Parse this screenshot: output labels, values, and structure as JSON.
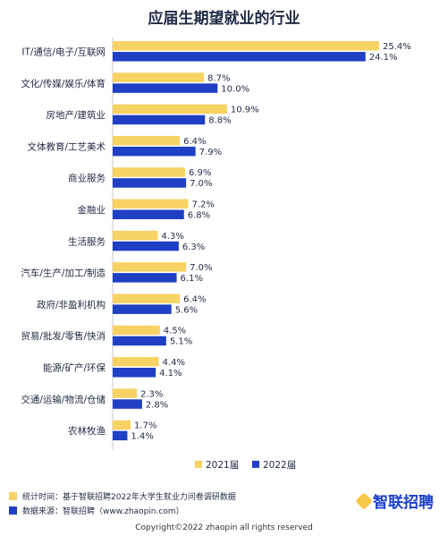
{
  "page": {
    "title": "应届生期望就业的行业"
  },
  "colors": {
    "y2021": "#f7d264",
    "y2022": "#1f3fc4",
    "axis": "#c8c8c8"
  },
  "chart_data": {
    "type": "bar",
    "orientation": "horizontal",
    "categories": [
      "IT/通信/电子/互联网",
      "文化/传媒/娱乐/体育",
      "房地产/建筑业",
      "文体教育/工艺美术",
      "商业服务",
      "金融业",
      "生活服务",
      "汽车/生产/加工/制造",
      "政府/非盈利机构",
      "贸易/批发/零售/快消",
      "能源/矿产/环保",
      "交通/运输/物流/仓储",
      "农林牧渔"
    ],
    "series": [
      {
        "name": "2021届",
        "values": [
          25.4,
          8.7,
          10.9,
          6.4,
          6.9,
          7.2,
          4.3,
          7.0,
          6.4,
          4.5,
          4.4,
          2.3,
          1.7
        ],
        "labels": [
          "25.4%",
          "8.7%",
          "10.9%",
          "6.4%",
          "6.9%",
          "7.2%",
          "4.3%",
          "7.0%",
          "6.4%",
          "4.5%",
          "4.4%",
          "2.3%",
          "1.7%"
        ]
      },
      {
        "name": "2022届",
        "values": [
          24.1,
          10.0,
          8.8,
          7.9,
          7.0,
          6.8,
          6.3,
          6.1,
          5.6,
          5.1,
          4.1,
          2.8,
          1.4
        ],
        "labels": [
          "24.1%",
          "10.0%",
          "8.8%",
          "7.9%",
          "7.0%",
          "6.8%",
          "6.3%",
          "6.1%",
          "5.6%",
          "5.1%",
          "4.1%",
          "2.8%",
          "1.4%"
        ]
      }
    ],
    "xlim": [
      0,
      26
    ],
    "legend": "bottom-right"
  },
  "footer": {
    "note1": "统计时间：基于智联招聘2022年大学生就业力问卷调研数据",
    "note2": "数据来源：智联招聘（www.zhaopin.com）",
    "brand": "智联招聘",
    "copyright": "Copyright©2022 zhaopin all rights reserved"
  }
}
